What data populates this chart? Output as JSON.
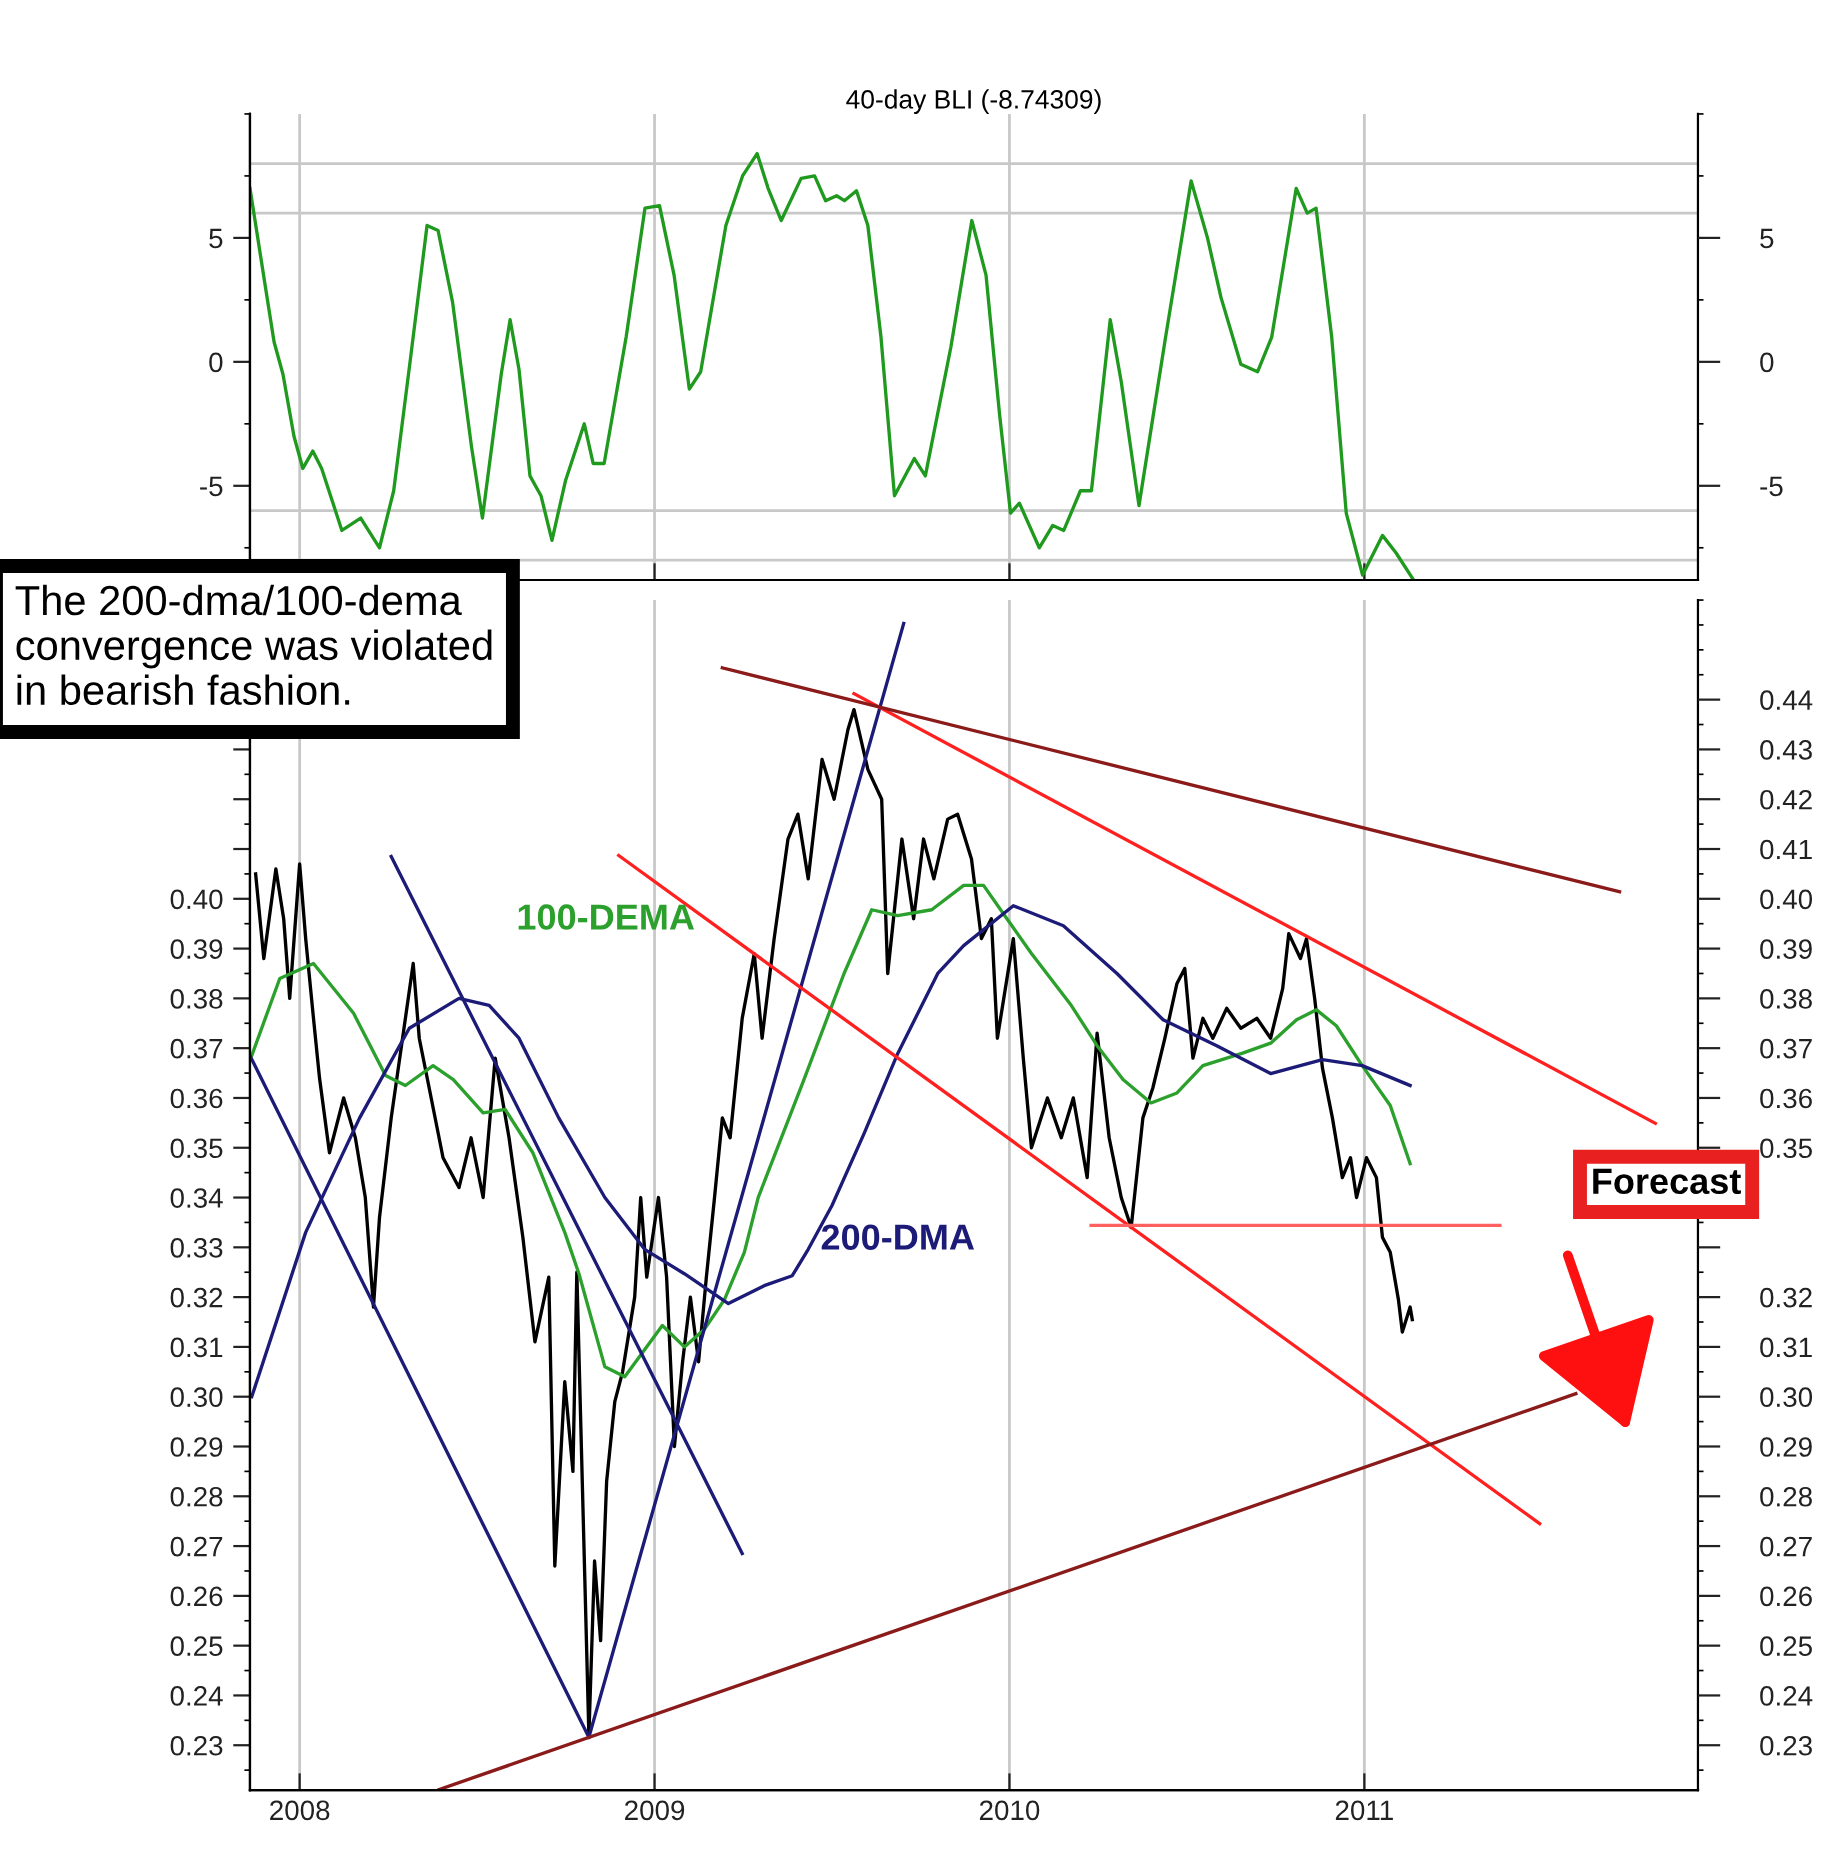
{
  "chart_data": [
    {
      "type": "line",
      "title": "40-day BLI (-8.74309)",
      "xlim": [
        2007.86,
        2011.94
      ],
      "xticks": [
        2008,
        2009,
        2010,
        2011
      ],
      "ylim": [
        -8.8,
        10
      ],
      "yticks": [
        -5,
        0,
        5
      ],
      "y2lim": [
        -8.8,
        10
      ],
      "y2ticks": [
        -5,
        0,
        5
      ],
      "tick_labels": "y",
      "grid": "x",
      "legend": false,
      "ref_lines": [
        {
          "axis": "y",
          "value": 8,
          "color": "#c8c8c8"
        },
        {
          "axis": "y",
          "value": 6,
          "color": "#c8c8c8"
        },
        {
          "axis": "y",
          "value": -6,
          "color": "#c8c8c8"
        },
        {
          "axis": "y",
          "value": -8,
          "color": "#c8c8c8"
        }
      ],
      "series": [
        {
          "color": "#1f9a1f",
          "x": [
            2007.86,
            2007.906,
            2007.928,
            2007.953,
            2007.984,
            2008.009,
            2008.037,
            2008.062,
            2008.119,
            2008.172,
            2008.225,
            2008.265,
            2008.312,
            2008.359,
            2008.39,
            2008.431,
            2008.484,
            2008.515,
            2008.568,
            2008.593,
            2008.618,
            2008.649,
            2008.68,
            2008.711,
            2008.749,
            2008.802,
            2008.827,
            2008.858,
            2008.92,
            2008.973,
            2009.014,
            2009.055,
            2009.098,
            2009.13,
            2009.201,
            2009.248,
            2009.289,
            2009.32,
            2009.357,
            2009.413,
            2009.451,
            2009.482,
            2009.513,
            2009.535,
            2009.569,
            2009.601,
            2009.638,
            2009.676,
            2009.732,
            2009.763,
            2009.835,
            2009.894,
            2009.934,
            2009.972,
            2010.003,
            2010.028,
            2010.084,
            2010.122,
            2010.153,
            2010.2,
            2010.231,
            2010.284,
            2010.315,
            2010.365,
            2010.44,
            2010.512,
            2010.558,
            2010.596,
            2010.652,
            2010.699,
            2010.739,
            2010.808,
            2010.839,
            2010.864,
            2010.908,
            2010.949,
            2010.995,
            2011.051,
            2011.089,
            2011.136
          ],
          "values": [
            7.0,
            2.8,
            0.8,
            -0.5,
            -3.0,
            -4.3,
            -3.6,
            -4.3,
            -6.8,
            -6.3,
            -7.5,
            -5.2,
            0.1,
            5.5,
            5.3,
            2.4,
            -3.4,
            -6.3,
            -0.5,
            1.7,
            -0.3,
            -4.6,
            -5.4,
            -7.2,
            -4.8,
            -2.5,
            -4.1,
            -4.1,
            1.0,
            6.2,
            6.3,
            3.5,
            -1.1,
            -0.4,
            5.5,
            7.5,
            8.4,
            7.0,
            5.7,
            7.4,
            7.5,
            6.5,
            6.7,
            6.5,
            6.9,
            5.5,
            1.0,
            -5.4,
            -3.9,
            -4.6,
            0.6,
            5.7,
            3.5,
            -2.1,
            -6.1,
            -5.7,
            -7.5,
            -6.6,
            -6.8,
            -5.2,
            -5.2,
            1.7,
            -0.8,
            -5.8,
            1.0,
            7.3,
            5.0,
            2.6,
            -0.1,
            -0.4,
            1.0,
            7.0,
            6.0,
            6.2,
            1.0,
            -6.1,
            -8.6,
            -7.0,
            -7.7,
            -8.74
          ]
        }
      ]
    },
    {
      "type": "line",
      "xlim": [
        2007.86,
        2011.94
      ],
      "xticks": [
        2008,
        2009,
        2010,
        2011
      ],
      "ylim": [
        0.221,
        0.46
      ],
      "yticks": [
        0.23,
        0.24,
        0.25,
        0.26,
        0.27,
        0.28,
        0.29,
        {
          "value": 0.3,
          "label": "0.30"
        },
        0.31,
        0.32,
        0.33,
        0.34,
        0.35,
        0.36,
        0.37,
        0.38,
        0.39,
        {
          "value": 0.4,
          "label": "0.40"
        },
        {
          "value": 0.41,
          "label": null
        },
        {
          "value": 0.42,
          "label": null
        },
        {
          "value": 0.43,
          "label": null
        },
        {
          "value": 0.44,
          "label": null
        }
      ],
      "y2lim": [
        0.221,
        0.46
      ],
      "y2ticks": [
        0.23,
        0.24,
        0.25,
        0.26,
        0.27,
        0.28,
        0.29,
        {
          "value": 0.3,
          "label": "0.30"
        },
        0.31,
        0.32,
        {
          "value": 0.33,
          "label": null
        },
        {
          "value": 0.34,
          "label": null
        },
        0.35,
        0.36,
        0.37,
        0.38,
        0.39,
        {
          "value": 0.4,
          "label": "0.40"
        },
        0.41,
        0.42,
        0.43,
        0.44
      ],
      "grid": "x",
      "legend": false,
      "annotations": [
        "The 200-dma/100-dema\nconvergence was violated\nin bearish fashion.",
        "Forecast"
      ],
      "series": [
        {
          "color": "#000000",
          "x": [
            2007.876,
            2007.899,
            2007.933,
            2007.955,
            2007.972,
            2008.0,
            2008.017,
            2008.039,
            2008.056,
            2008.084,
            2008.124,
            2008.157,
            2008.185,
            2008.208,
            2008.225,
            2008.258,
            2008.32,
            2008.337,
            2008.365,
            2008.404,
            2008.449,
            2008.483,
            2008.517,
            2008.551,
            2008.59,
            2008.629,
            2008.663,
            2008.702,
            2008.719,
            2008.747,
            2008.77,
            2008.781,
            2008.815,
            2008.831,
            2008.848,
            2008.865,
            2008.888,
            2008.91,
            2008.944,
            2008.961,
            2008.978,
            2009.011,
            2009.034,
            2009.056,
            2009.079,
            2009.101,
            2009.124,
            2009.146,
            2009.169,
            2009.191,
            2009.213,
            2009.247,
            2009.281,
            2009.303,
            2009.337,
            2009.376,
            2009.404,
            2009.433,
            2009.472,
            2009.506,
            2009.545,
            2009.562,
            2009.601,
            2009.64,
            2009.657,
            2009.697,
            2009.73,
            2009.758,
            2009.787,
            2009.826,
            2009.854,
            2009.893,
            2009.921,
            2009.949,
            2009.966,
            2010.011,
            2010.039,
            2010.062,
            2010.107,
            2010.146,
            2010.18,
            2010.219,
            2010.247,
            2010.281,
            2010.315,
            2010.343,
            2010.376,
            2010.404,
            2010.438,
            2010.472,
            2010.494,
            2010.517,
            2010.545,
            2010.573,
            2010.612,
            2010.652,
            2010.697,
            2010.736,
            2010.77,
            2010.787,
            2010.82,
            2010.837,
            2010.86,
            2010.882,
            2010.91,
            2010.938,
            2010.961,
            2010.978,
            2011.006,
            2011.034,
            2011.051,
            2011.073,
            2011.096,
            2011.107,
            2011.129,
            2011.135
          ],
          "values": [
            0.405,
            0.388,
            0.406,
            0.396,
            0.38,
            0.407,
            0.392,
            0.376,
            0.364,
            0.349,
            0.36,
            0.352,
            0.34,
            0.318,
            0.336,
            0.356,
            0.387,
            0.372,
            0.362,
            0.348,
            0.342,
            0.352,
            0.34,
            0.368,
            0.352,
            0.332,
            0.311,
            0.324,
            0.266,
            0.303,
            0.285,
            0.325,
            0.232,
            0.267,
            0.251,
            0.283,
            0.299,
            0.305,
            0.32,
            0.34,
            0.324,
            0.34,
            0.324,
            0.29,
            0.307,
            0.32,
            0.307,
            0.324,
            0.34,
            0.356,
            0.352,
            0.376,
            0.389,
            0.372,
            0.392,
            0.412,
            0.417,
            0.404,
            0.428,
            0.42,
            0.434,
            0.438,
            0.426,
            0.42,
            0.385,
            0.412,
            0.396,
            0.412,
            0.404,
            0.416,
            0.417,
            0.408,
            0.392,
            0.396,
            0.372,
            0.392,
            0.368,
            0.35,
            0.36,
            0.352,
            0.36,
            0.344,
            0.373,
            0.352,
            0.34,
            0.334,
            0.356,
            0.362,
            0.372,
            0.383,
            0.386,
            0.368,
            0.376,
            0.372,
            0.378,
            0.374,
            0.376,
            0.372,
            0.382,
            0.393,
            0.388,
            0.392,
            0.38,
            0.366,
            0.356,
            0.344,
            0.348,
            0.34,
            0.348,
            0.344,
            0.332,
            0.329,
            0.3195,
            0.313,
            0.318,
            0.3155
          ]
        },
        {
          "name": "100-DEMA",
          "color": "#2ca02c",
          "x": [
            2007.865,
            2007.944,
            2008.039,
            2008.152,
            2008.242,
            2008.298,
            2008.376,
            2008.433,
            2008.517,
            2008.579,
            2008.657,
            2008.747,
            2008.787,
            2008.86,
            2008.916,
            2009.022,
            2009.084,
            2009.14,
            2009.197,
            2009.253,
            2009.292,
            2009.421,
            2009.534,
            2009.612,
            2009.685,
            2009.781,
            2009.871,
            2009.927,
            2009.983,
            2010.062,
            2010.174,
            2010.247,
            2010.32,
            2010.399,
            2010.472,
            2010.545,
            2010.657,
            2010.736,
            2010.809,
            2010.865,
            2010.921,
            2010.994,
            2011.073,
            2011.129
          ],
          "values": [
            0.3685,
            0.384,
            0.387,
            0.377,
            0.3645,
            0.3625,
            0.3665,
            0.3637,
            0.357,
            0.3577,
            0.349,
            0.333,
            0.3247,
            0.306,
            0.304,
            0.3143,
            0.31,
            0.3135,
            0.3195,
            0.329,
            0.34,
            0.3637,
            0.385,
            0.3978,
            0.3966,
            0.3978,
            0.4027,
            0.4027,
            0.397,
            0.389,
            0.3786,
            0.3705,
            0.3637,
            0.359,
            0.361,
            0.3665,
            0.369,
            0.371,
            0.3757,
            0.3777,
            0.3745,
            0.3665,
            0.3585,
            0.3468
          ]
        },
        {
          "name": "200-DMA",
          "color": "#1c1c78",
          "x": [
            2007.865,
            2008.017,
            2008.169,
            2008.309,
            2008.449,
            2008.534,
            2008.618,
            2008.73,
            2008.86,
            2008.972,
            2009.084,
            2009.208,
            2009.309,
            2009.388,
            2009.433,
            2009.5,
            2009.59,
            2009.685,
            2009.798,
            2009.871,
            2010.011,
            2010.152,
            2010.303,
            2010.433,
            2010.584,
            2010.736,
            2010.882,
            2010.994,
            2011.129
          ],
          "values": [
            0.3,
            0.333,
            0.356,
            0.374,
            0.38,
            0.3786,
            0.372,
            0.356,
            0.34,
            0.3296,
            0.3247,
            0.3187,
            0.3223,
            0.3243,
            0.3296,
            0.3384,
            0.3528,
            0.3689,
            0.385,
            0.3906,
            0.3986,
            0.3946,
            0.385,
            0.3757,
            0.3705,
            0.3649,
            0.3677,
            0.3665,
            0.3625
          ]
        },
        {
          "color": "#1c1c78",
          "x": [
            2007.86,
            2008.815
          ],
          "values": [
            0.3685,
            0.2316
          ]
        },
        {
          "color": "#1c1c78",
          "x": [
            2008.815,
            2009.702
          ],
          "values": [
            0.2316,
            0.4553
          ]
        },
        {
          "color": "#1c1c78",
          "x": [
            2008.258,
            2009.247
          ],
          "values": [
            0.4085,
            0.2685
          ]
        },
        {
          "color": "#ff2020",
          "x": [
            2009.562,
            2011.82
          ],
          "values": [
            0.4412,
            0.3549
          ]
        },
        {
          "color": "#ff2020",
          "x": [
            2008.899,
            2011.494
          ],
          "values": [
            0.4087,
            0.2745
          ]
        },
        {
          "color": "#ff6060",
          "x": [
            2010.23,
            2011.382
          ],
          "values": [
            0.3344,
            0.3344
          ]
        },
        {
          "color": "#8b1a1a",
          "x": [
            2009.191,
            2011.719
          ],
          "values": [
            0.4464,
            0.4014
          ]
        },
        {
          "color": "#8b1a1a",
          "x": [
            2008.393,
            2011.596
          ],
          "values": [
            0.2211,
            0.3006
          ]
        }
      ]
    }
  ]
}
